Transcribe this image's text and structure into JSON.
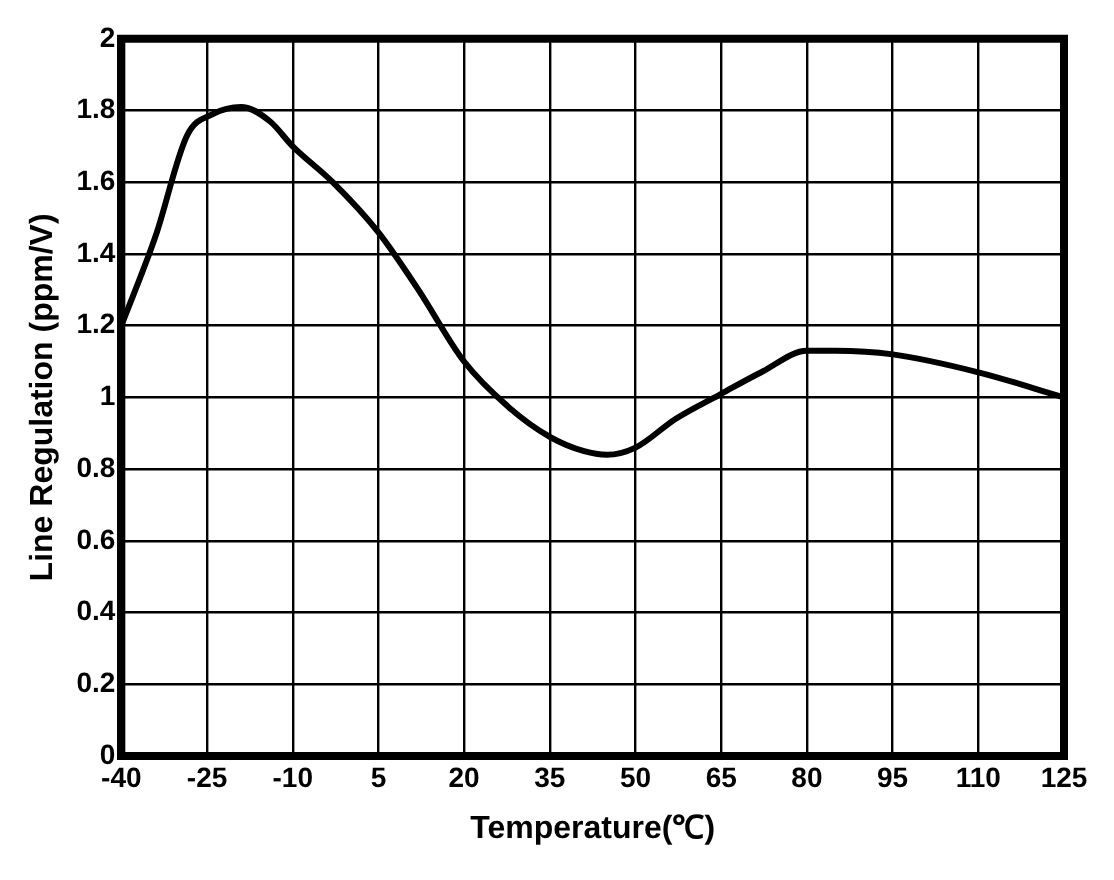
{
  "chart_data": {
    "type": "line",
    "xlabel": "Temperature(℃)",
    "ylabel": "Line Regulation (ppm/V)",
    "series": [
      {
        "color": "#000000",
        "x": [
          -40,
          -34,
          -28.5,
          -24,
          -19,
          -14,
          -10,
          -3,
          5,
          12,
          20,
          28,
          35,
          41,
          45,
          50,
          57,
          65,
          72,
          80,
          85,
          95,
          110,
          125
        ],
        "values": [
          1.2,
          1.45,
          1.73,
          1.79,
          1.81,
          1.77,
          1.7,
          1.6,
          1.46,
          1.3,
          1.1,
          0.97,
          0.89,
          0.85,
          0.84,
          0.86,
          0.94,
          1.01,
          1.07,
          1.13,
          1.13,
          1.12,
          1.07,
          1.0
        ]
      }
    ],
    "xlim": [
      -40,
      125
    ],
    "xticks": [
      -40,
      -25,
      -10,
      5,
      20,
      35,
      50,
      65,
      80,
      95,
      110,
      125
    ],
    "ylim": [
      0,
      2
    ],
    "yticks": [
      0,
      0.2,
      0.4,
      0.6,
      0.8,
      1,
      1.2,
      1.4,
      1.6,
      1.8,
      2
    ],
    "grid": true,
    "legend": false,
    "marker": "none",
    "line_style": "solid"
  }
}
